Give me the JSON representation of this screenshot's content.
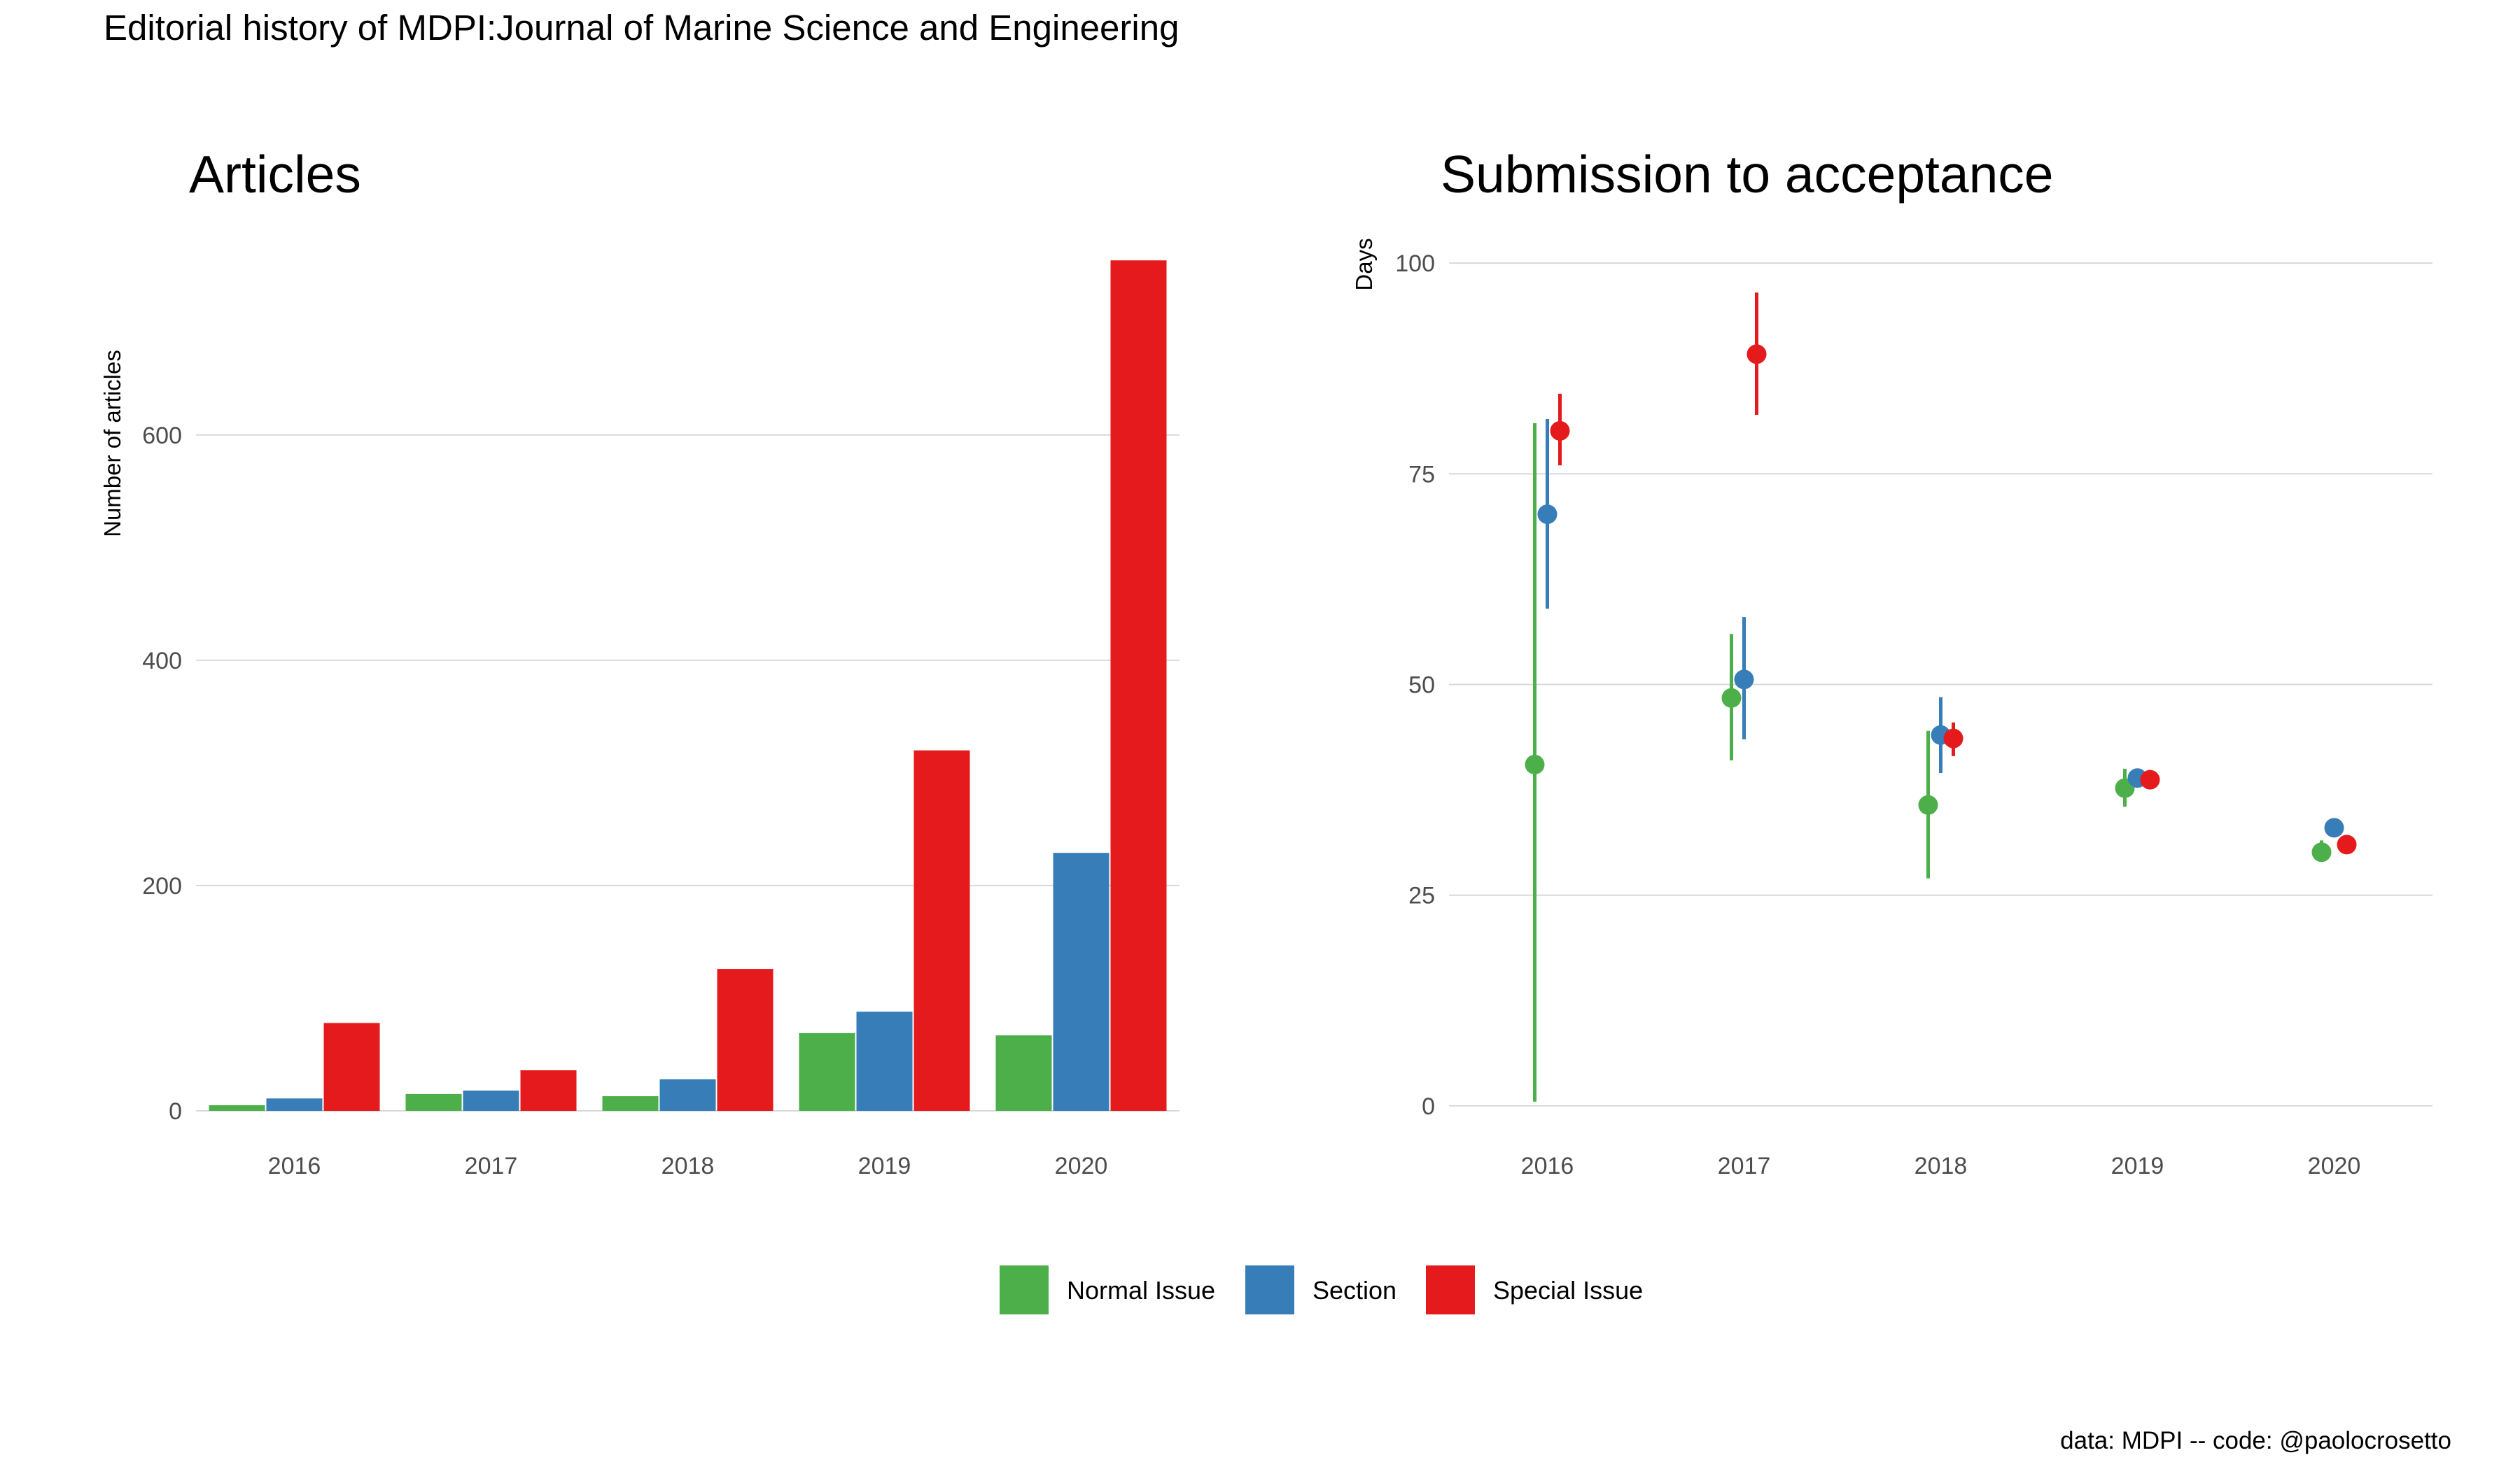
{
  "title": "Editorial history of MDPI:Journal of Marine Science and Engineering",
  "caption": "data: MDPI -- code: @paolocrosetto",
  "colors": {
    "Normal Issue": "#4DAF4A",
    "Section": "#377EB8",
    "Special Issue": "#E41A1C"
  },
  "legend": {
    "items": [
      "Normal Issue",
      "Section",
      "Special Issue"
    ],
    "position": "bottom"
  },
  "chart_data": [
    {
      "type": "bar",
      "title": "Articles",
      "ylabel": "Number of articles",
      "xlabel": "",
      "categories": [
        "2016",
        "2017",
        "2018",
        "2019",
        "2020"
      ],
      "ylim": [
        0,
        775
      ],
      "yticks": [
        0,
        200,
        400,
        600
      ],
      "grid": true,
      "series": [
        {
          "name": "Normal Issue",
          "values": [
            5,
            15,
            13,
            69,
            67
          ]
        },
        {
          "name": "Section",
          "values": [
            11,
            18,
            28,
            88,
            229
          ]
        },
        {
          "name": "Special Issue",
          "values": [
            78,
            36,
            126,
            320,
            755
          ]
        }
      ]
    },
    {
      "type": "scatter",
      "title": "Submission to acceptance",
      "ylabel": "Days",
      "xlabel": "",
      "categories": [
        "2016",
        "2017",
        "2018",
        "2019",
        "2020"
      ],
      "ylim": [
        -2,
        103
      ],
      "yticks": [
        0,
        25,
        50,
        75,
        100
      ],
      "grid": true,
      "series": [
        {
          "name": "Normal Issue",
          "values": [
            40.5,
            48.4,
            35.7,
            37.7,
            30.1
          ],
          "low": [
            0.5,
            41,
            27,
            35.5,
            29
          ],
          "high": [
            81,
            56,
            44.5,
            40,
            31.5
          ]
        },
        {
          "name": "Section",
          "values": [
            70.2,
            50.6,
            44,
            38.9,
            33
          ],
          "low": [
            59,
            43.5,
            39.5,
            38,
            32.5
          ],
          "high": [
            81.5,
            58,
            48.5,
            40,
            33.5
          ]
        },
        {
          "name": "Special Issue",
          "values": [
            80.1,
            89.2,
            43.6,
            38.7,
            31
          ],
          "low": [
            76,
            82,
            41.5,
            38,
            30.5
          ],
          "high": [
            84.5,
            96.5,
            45.5,
            39.5,
            31.5
          ]
        }
      ]
    }
  ]
}
